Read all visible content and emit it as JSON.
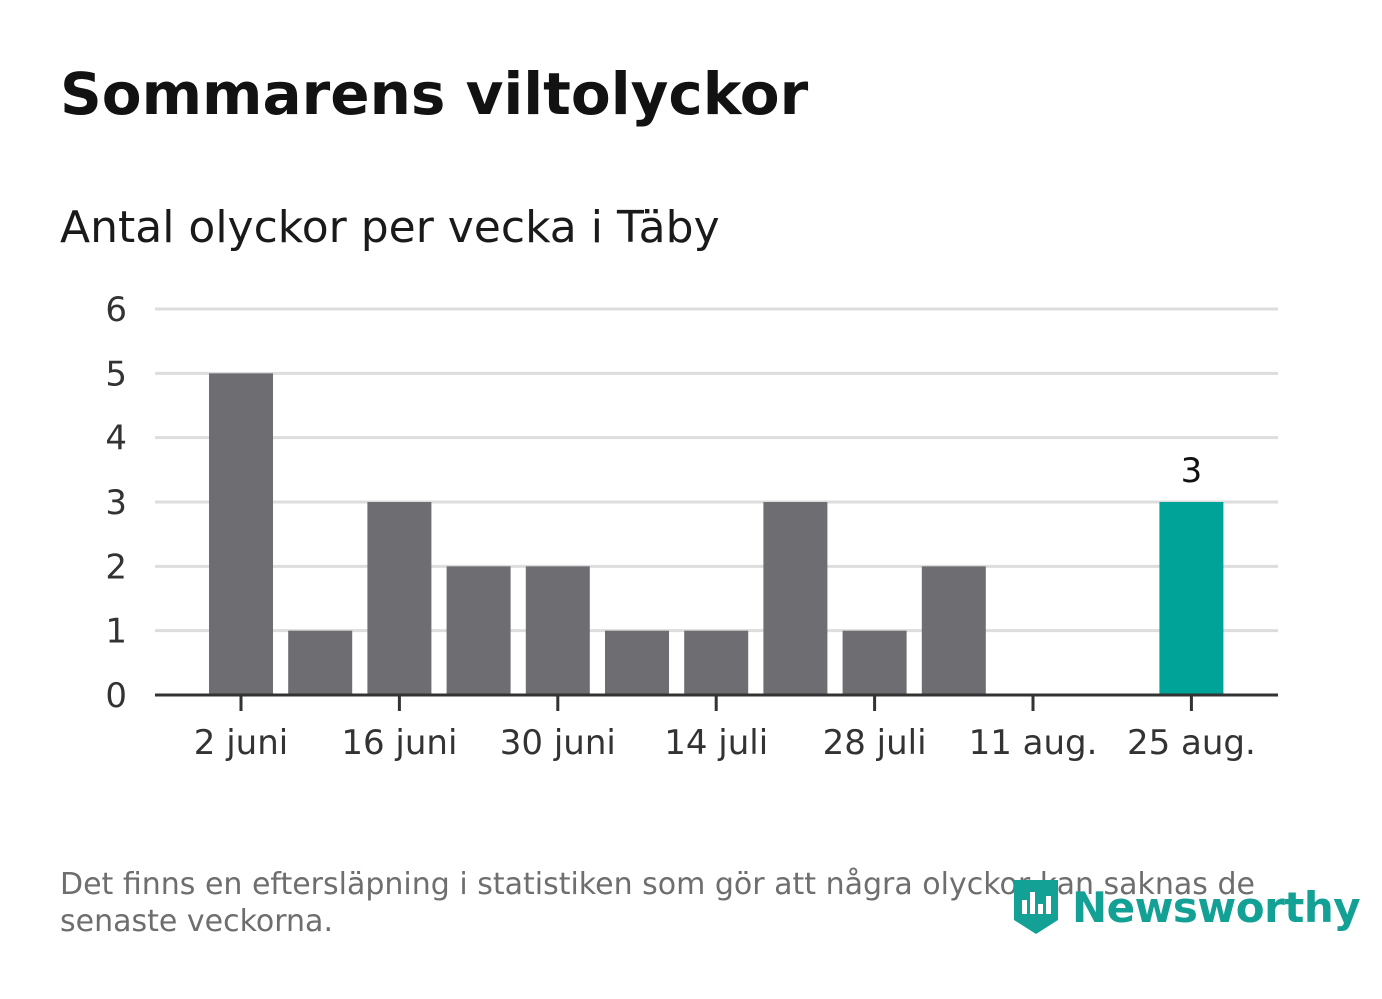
{
  "title": "Sommarens viltolyckor",
  "subtitle": "Antal olyckor per vecka i Täby",
  "footnote": "Det finns en eftersläpning i statistiken som gör att några olyckor kan saknas de senaste veckorna.",
  "brand": "Newsworthy",
  "colors": {
    "bar": "#6e6d72",
    "highlight": "#00a398",
    "grid": "#dddddd",
    "axis": "#333333",
    "brand": "#13a095"
  },
  "chart_data": {
    "type": "bar",
    "title": "Sommarens viltolyckor",
    "subtitle": "Antal olyckor per vecka i Täby",
    "weeks": [
      "2 juni",
      "9 juni",
      "16 juni",
      "23 juni",
      "30 juni",
      "7 juli",
      "14 juli",
      "21 juli",
      "28 juli",
      "4 aug.",
      "11 aug.",
      "18 aug.",
      "25 aug."
    ],
    "values": [
      5,
      1,
      3,
      2,
      2,
      1,
      1,
      3,
      1,
      2,
      0,
      0,
      3
    ],
    "x_tick_labels": [
      "2 juni",
      "16 juni",
      "30 juni",
      "14 juli",
      "28 juli",
      "11 aug.",
      "25 aug."
    ],
    "y_ticks": [
      0,
      1,
      2,
      3,
      4,
      5,
      6
    ],
    "ylim": [
      0,
      6
    ],
    "highlight_index": 12,
    "highlight_label": "3",
    "grid": true,
    "legend": "none"
  }
}
